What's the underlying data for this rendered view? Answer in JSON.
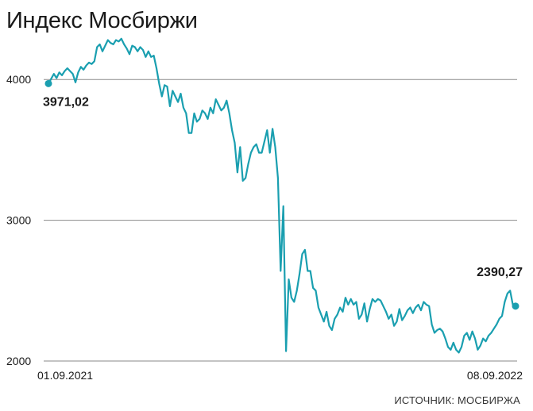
{
  "title": "Индекс Мосбиржи",
  "source": "ИСТОЧНИК: МОСБИРЖА",
  "colors": {
    "line": "#1a9fb0",
    "grid": "#8a8a8a",
    "text": "#1a1a1a"
  },
  "chart_data": {
    "type": "line",
    "ylim": [
      2000,
      4300
    ],
    "yticks": [
      2000,
      3000,
      4000
    ],
    "ytick_labels": [
      "2000",
      "3000",
      "4000"
    ],
    "x_start_label": "01.09.2021",
    "x_end_label": "08.09.2022",
    "start_annotation": "3971,02",
    "end_annotation": "2390,27",
    "series": [
      {
        "values": [
          3971,
          4005,
          4040,
          4010,
          4050,
          4030,
          4060,
          4080,
          4060,
          4040,
          3980,
          4050,
          4090,
          4070,
          4100,
          4120,
          4110,
          4130,
          4230,
          4250,
          4200,
          4240,
          4280,
          4260,
          4250,
          4280,
          4270,
          4290,
          4250,
          4220,
          4180,
          4240,
          4230,
          4200,
          4230,
          4210,
          4160,
          4200,
          4160,
          4170,
          4080,
          3970,
          3880,
          3960,
          3950,
          3810,
          3920,
          3880,
          3840,
          3900,
          3800,
          3760,
          3620,
          3620,
          3760,
          3700,
          3720,
          3780,
          3760,
          3720,
          3800,
          3760,
          3860,
          3820,
          3780,
          3800,
          3850,
          3760,
          3640,
          3550,
          3340,
          3520,
          3280,
          3300,
          3400,
          3480,
          3520,
          3540,
          3480,
          3480,
          3560,
          3640,
          3480,
          3650,
          3520,
          3300,
          2640,
          3100,
          2070,
          2580,
          2450,
          2420,
          2500,
          2620,
          2760,
          2790,
          2640,
          2640,
          2520,
          2500,
          2380,
          2330,
          2280,
          2350,
          2250,
          2220,
          2300,
          2330,
          2380,
          2350,
          2450,
          2400,
          2440,
          2400,
          2420,
          2300,
          2330,
          2410,
          2280,
          2370,
          2440,
          2420,
          2440,
          2430,
          2390,
          2350,
          2300,
          2330,
          2250,
          2280,
          2370,
          2290,
          2320,
          2360,
          2380,
          2340,
          2380,
          2400,
          2360,
          2420,
          2400,
          2390,
          2260,
          2200,
          2220,
          2230,
          2210,
          2160,
          2100,
          2080,
          2130,
          2080,
          2060,
          2100,
          2180,
          2200,
          2150,
          2210,
          2160,
          2080,
          2110,
          2160,
          2140,
          2180,
          2200,
          2230,
          2260,
          2300,
          2320,
          2420,
          2480,
          2500,
          2400,
          2390
        ]
      }
    ]
  }
}
